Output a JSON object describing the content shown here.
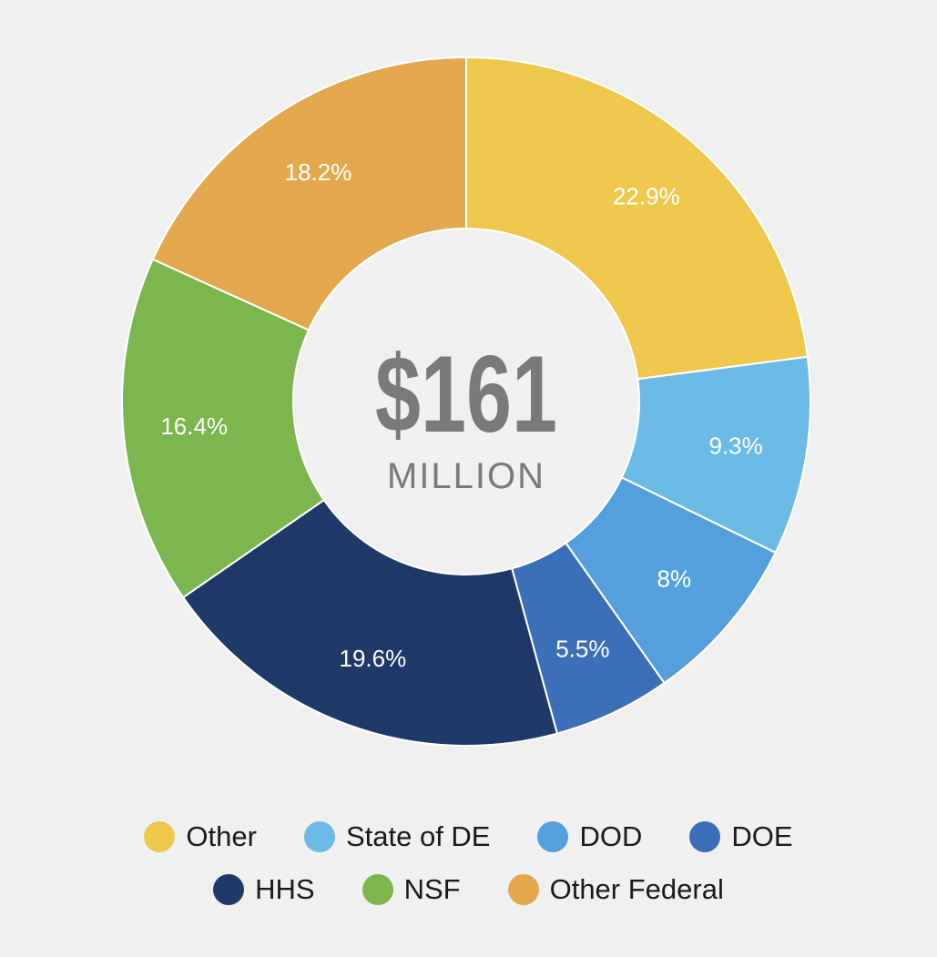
{
  "chart_data": {
    "type": "pie",
    "donut": true,
    "center_text": {
      "value": "$161",
      "unit": "MILLION"
    },
    "slices": [
      {
        "name": "Other",
        "value": 22.9,
        "label": "22.9%",
        "color": "#edc84c"
      },
      {
        "name": "State of DE",
        "value": 9.3,
        "label": "9.3%",
        "color": "#6cbae6"
      },
      {
        "name": "DOD",
        "value": 8,
        "label": "8%",
        "color": "#55a0dc"
      },
      {
        "name": "DOE",
        "value": 5.5,
        "label": "5.5%",
        "color": "#3b6fb8"
      },
      {
        "name": "HHS",
        "value": 19.6,
        "label": "19.6%",
        "color": "#1f3968"
      },
      {
        "name": "NSF",
        "value": 16.4,
        "label": "16.4%",
        "color": "#7cb64f"
      },
      {
        "name": "Other Federal",
        "value": 18.2,
        "label": "18.2%",
        "color": "#e4a84f"
      }
    ],
    "legend": {
      "placement": "bottom",
      "rows": [
        [
          "Other",
          "State of DE",
          "DOD",
          "DOE"
        ],
        [
          "HHS",
          "NSF",
          "Other Federal"
        ]
      ]
    }
  }
}
